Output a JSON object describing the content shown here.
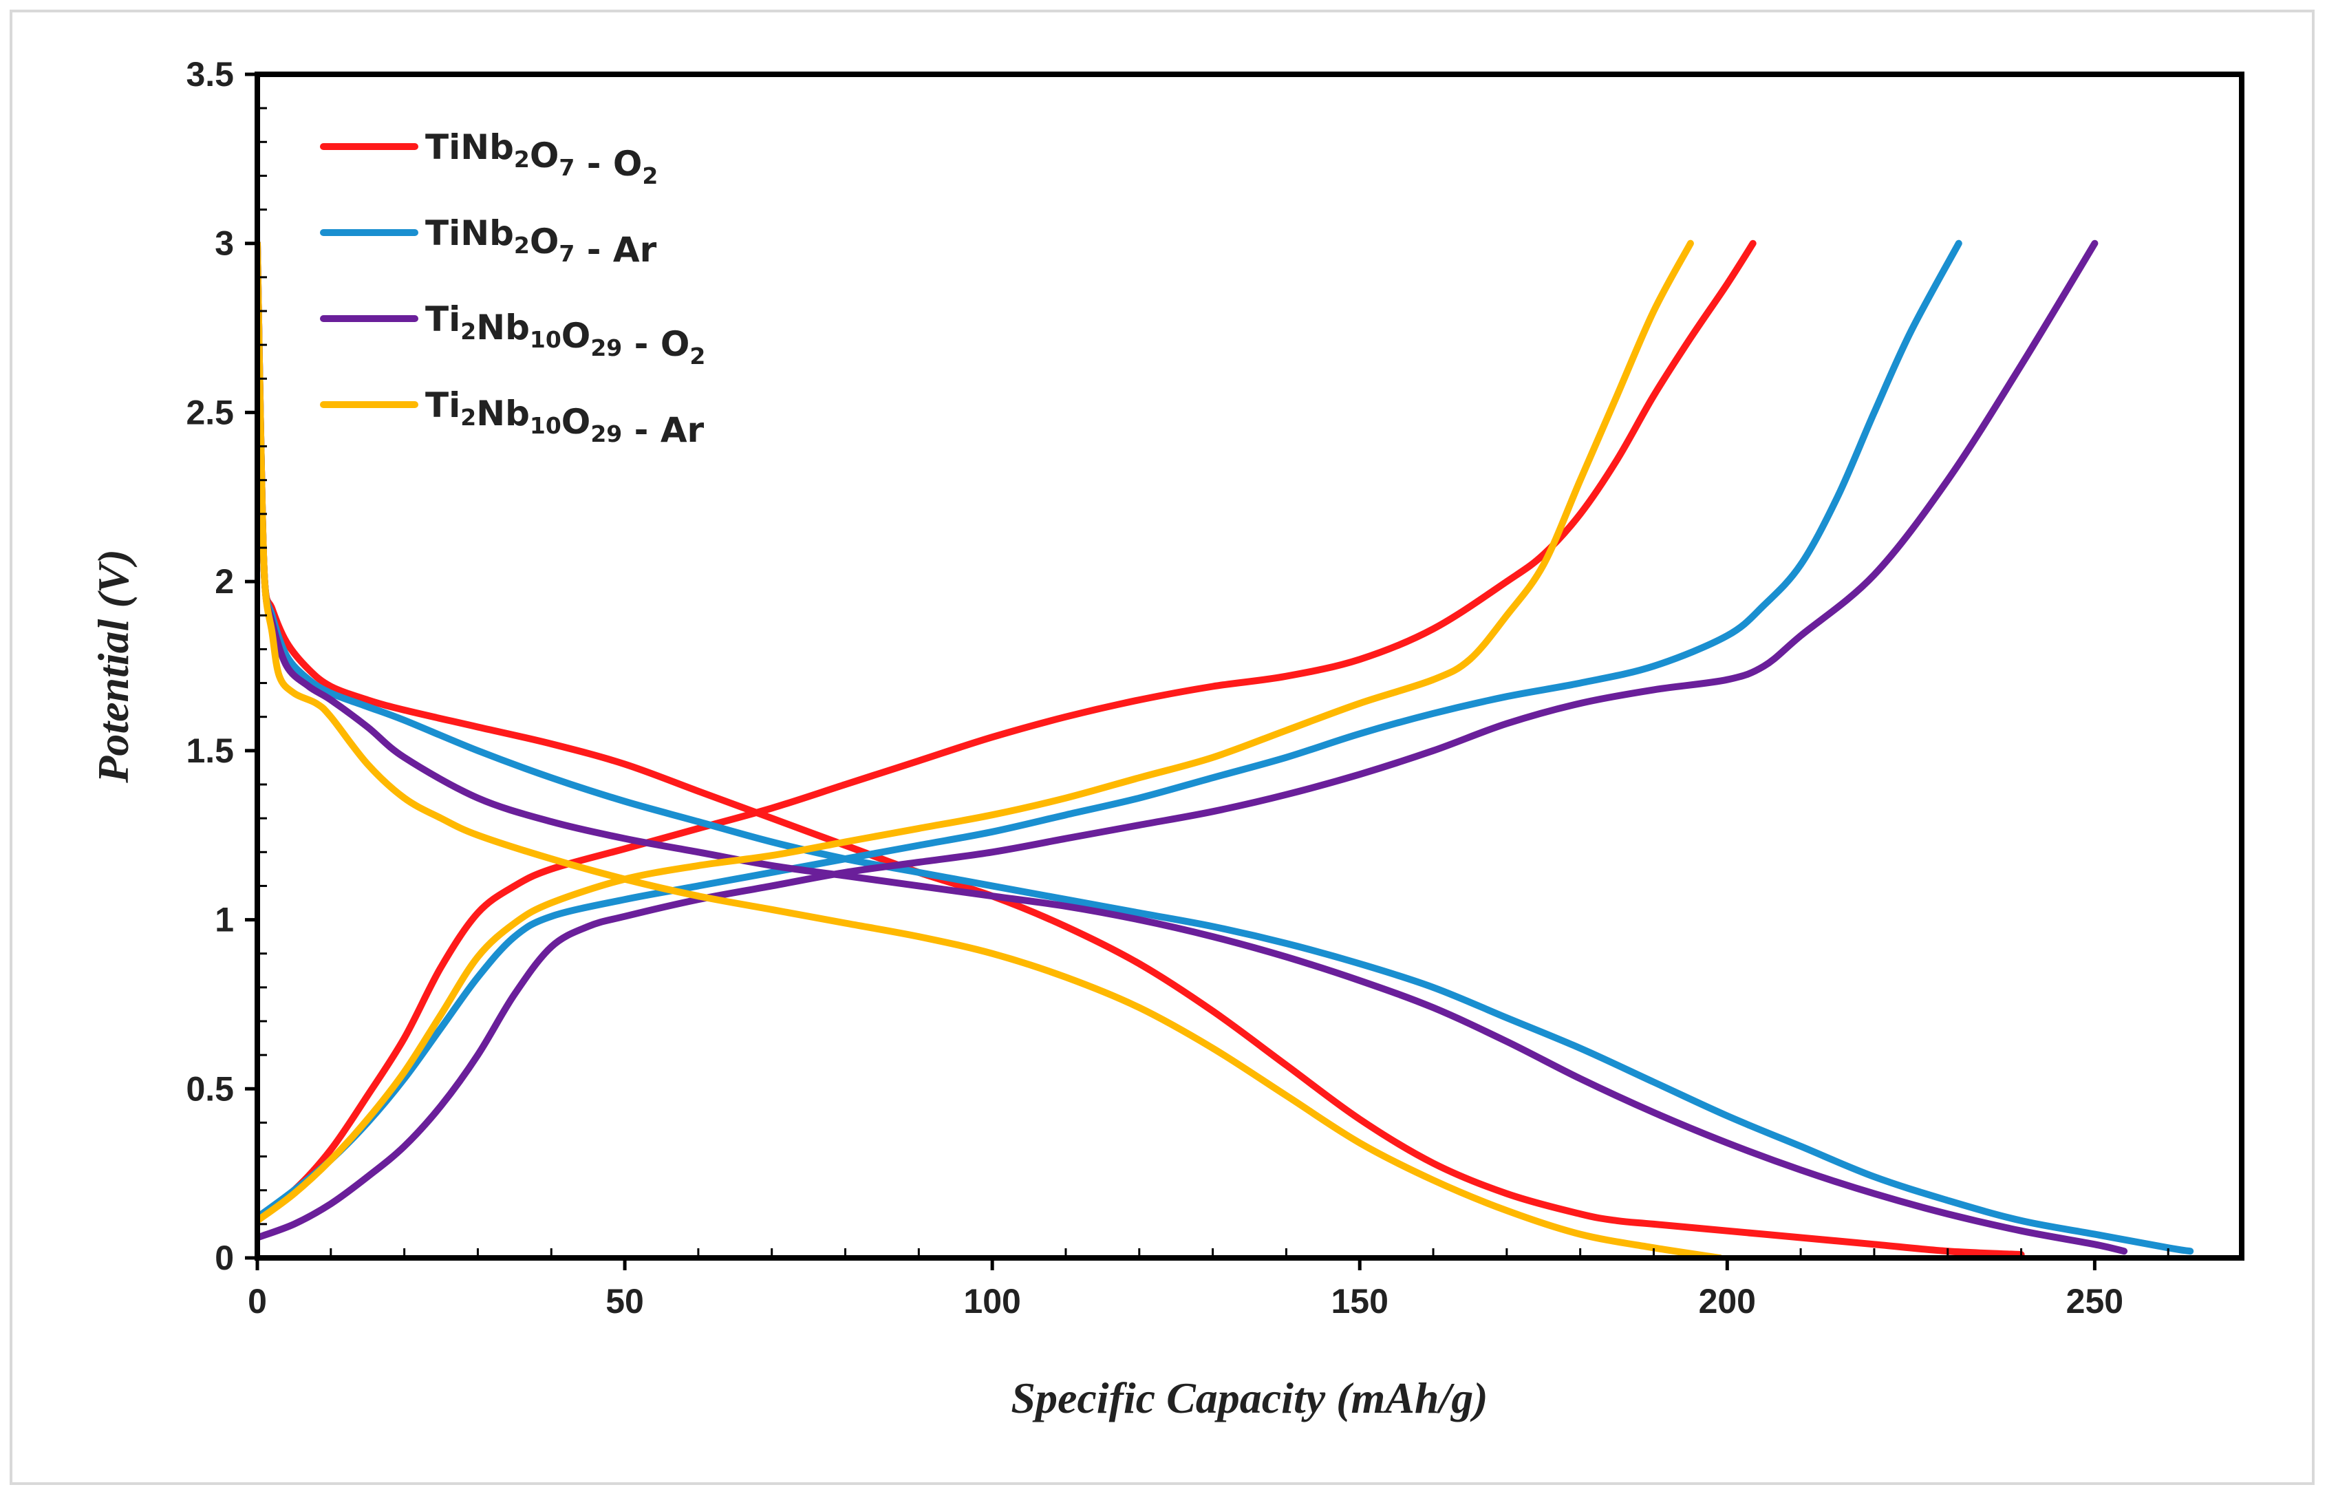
{
  "chart_data": {
    "type": "line",
    "title": "",
    "xlabel": "Specific Capacity (mAh/g)",
    "ylabel": "Potential (V)",
    "xlim": [
      0,
      270
    ],
    "ylim": [
      0,
      3.5
    ],
    "x_ticks": [
      0,
      50,
      100,
      150,
      200,
      250
    ],
    "y_ticks": [
      0,
      0.5,
      1,
      1.5,
      2,
      2.5,
      3,
      3.5
    ],
    "x_tick_labels": [
      "0",
      "50",
      "100",
      "150",
      "200",
      "250"
    ],
    "y_tick_labels": [
      "0",
      "0.5",
      "1",
      "1.5",
      "2",
      "2.5",
      "3",
      "3.5"
    ],
    "grid": false,
    "legend_position": "top-left",
    "series": [
      {
        "name": "TiNb2O7 - O2",
        "label_parts": [
          [
            "TiNb",
            ""
          ],
          [
            "2",
            "sub"
          ],
          [
            "O",
            ""
          ],
          [
            "7",
            "sub"
          ],
          [
            " - O",
            ""
          ],
          [
            "2",
            "sub"
          ]
        ],
        "color": "#ff1a1a",
        "discharge": {
          "x": [
            0,
            0.5,
            1,
            2,
            4,
            7,
            10,
            15,
            20,
            30,
            40,
            50,
            60,
            70,
            80,
            90,
            100,
            110,
            120,
            130,
            140,
            150,
            160,
            170,
            180,
            185,
            190,
            200,
            210,
            220,
            230,
            240
          ],
          "y": [
            3.0,
            2.4,
            2.0,
            1.92,
            1.82,
            1.74,
            1.69,
            1.65,
            1.62,
            1.57,
            1.52,
            1.46,
            1.38,
            1.3,
            1.22,
            1.14,
            1.07,
            0.98,
            0.87,
            0.73,
            0.57,
            0.41,
            0.28,
            0.19,
            0.13,
            0.11,
            0.1,
            0.08,
            0.06,
            0.04,
            0.02,
            0.01
          ]
        },
        "charge": {
          "x": [
            0,
            5,
            10,
            15,
            20,
            25,
            30,
            35,
            40,
            50,
            60,
            70,
            80,
            90,
            100,
            110,
            120,
            130,
            140,
            150,
            160,
            170,
            175,
            180,
            185,
            190,
            195,
            200,
            203.5
          ],
          "y": [
            0.12,
            0.2,
            0.32,
            0.48,
            0.65,
            0.86,
            1.02,
            1.1,
            1.15,
            1.21,
            1.27,
            1.33,
            1.4,
            1.47,
            1.54,
            1.6,
            1.65,
            1.69,
            1.72,
            1.77,
            1.86,
            2.0,
            2.08,
            2.2,
            2.36,
            2.55,
            2.72,
            2.88,
            3.0
          ]
        }
      },
      {
        "name": "TiNb2O7 - Ar",
        "label_parts": [
          [
            "TiNb",
            ""
          ],
          [
            "2",
            "sub"
          ],
          [
            "O",
            ""
          ],
          [
            "7",
            "sub"
          ],
          [
            " - Ar",
            ""
          ]
        ],
        "color": "#1a8fd0",
        "discharge": {
          "x": [
            0,
            0.5,
            1,
            2,
            4,
            7,
            10,
            15,
            20,
            30,
            40,
            50,
            60,
            70,
            80,
            90,
            100,
            110,
            120,
            130,
            140,
            150,
            160,
            170,
            180,
            190,
            200,
            210,
            220,
            230,
            240,
            250,
            260,
            263
          ],
          "y": [
            3.0,
            2.4,
            2.0,
            1.9,
            1.78,
            1.71,
            1.67,
            1.63,
            1.59,
            1.5,
            1.42,
            1.35,
            1.29,
            1.23,
            1.18,
            1.14,
            1.1,
            1.06,
            1.02,
            0.98,
            0.93,
            0.87,
            0.8,
            0.71,
            0.62,
            0.52,
            0.42,
            0.33,
            0.24,
            0.17,
            0.11,
            0.07,
            0.03,
            0.02
          ]
        },
        "charge": {
          "x": [
            0,
            5,
            10,
            15,
            20,
            25,
            30,
            35,
            40,
            50,
            60,
            70,
            80,
            90,
            100,
            110,
            120,
            130,
            140,
            150,
            160,
            170,
            180,
            190,
            200,
            205,
            210,
            215,
            220,
            225,
            231.5
          ],
          "y": [
            0.12,
            0.2,
            0.29,
            0.4,
            0.53,
            0.68,
            0.83,
            0.95,
            1.01,
            1.06,
            1.1,
            1.14,
            1.18,
            1.22,
            1.26,
            1.31,
            1.36,
            1.42,
            1.48,
            1.55,
            1.61,
            1.66,
            1.7,
            1.75,
            1.84,
            1.93,
            2.05,
            2.25,
            2.5,
            2.74,
            3.0
          ]
        }
      },
      {
        "name": "Ti2Nb10O29 - O2",
        "label_parts": [
          [
            "Ti",
            ""
          ],
          [
            "2",
            "sub"
          ],
          [
            "Nb",
            ""
          ],
          [
            "10",
            "sub"
          ],
          [
            "O",
            ""
          ],
          [
            "29",
            "sub"
          ],
          [
            " - O",
            ""
          ],
          [
            "2",
            "sub"
          ]
        ],
        "color": "#6a1f9a",
        "discharge": {
          "x": [
            0,
            0.5,
            1,
            2,
            4,
            7,
            10,
            15,
            20,
            30,
            40,
            50,
            60,
            70,
            80,
            90,
            100,
            110,
            120,
            130,
            140,
            150,
            160,
            170,
            180,
            190,
            200,
            210,
            220,
            230,
            240,
            250,
            254
          ],
          "y": [
            3.0,
            2.4,
            2.0,
            1.88,
            1.75,
            1.69,
            1.65,
            1.57,
            1.48,
            1.36,
            1.29,
            1.24,
            1.2,
            1.16,
            1.13,
            1.1,
            1.07,
            1.04,
            1.0,
            0.95,
            0.89,
            0.82,
            0.74,
            0.64,
            0.53,
            0.43,
            0.34,
            0.26,
            0.19,
            0.13,
            0.08,
            0.04,
            0.02
          ]
        },
        "charge": {
          "x": [
            0,
            5,
            10,
            15,
            20,
            25,
            30,
            35,
            40,
            45,
            50,
            60,
            70,
            80,
            90,
            100,
            110,
            120,
            130,
            140,
            150,
            160,
            170,
            180,
            190,
            200,
            205,
            210,
            220,
            230,
            240,
            250
          ],
          "y": [
            0.06,
            0.1,
            0.16,
            0.24,
            0.33,
            0.45,
            0.6,
            0.78,
            0.92,
            0.98,
            1.01,
            1.06,
            1.1,
            1.14,
            1.17,
            1.2,
            1.24,
            1.28,
            1.32,
            1.37,
            1.43,
            1.5,
            1.58,
            1.64,
            1.68,
            1.71,
            1.75,
            1.84,
            2.02,
            2.3,
            2.64,
            3.0
          ]
        }
      },
      {
        "name": "Ti2Nb10O29 - Ar",
        "label_parts": [
          [
            "Ti",
            ""
          ],
          [
            "2",
            "sub"
          ],
          [
            "Nb",
            ""
          ],
          [
            "10",
            "sub"
          ],
          [
            "O",
            ""
          ],
          [
            "29",
            "sub"
          ],
          [
            " - Ar",
            ""
          ]
        ],
        "color": "#ffb800",
        "discharge": {
          "x": [
            0,
            0.5,
            1,
            2,
            3,
            5,
            8,
            10,
            15,
            20,
            25,
            30,
            40,
            50,
            60,
            70,
            80,
            90,
            100,
            110,
            120,
            130,
            140,
            150,
            160,
            170,
            180,
            190,
            199
          ],
          "y": [
            3.0,
            2.4,
            2.0,
            1.85,
            1.72,
            1.67,
            1.64,
            1.6,
            1.46,
            1.36,
            1.3,
            1.25,
            1.18,
            1.12,
            1.07,
            1.03,
            0.99,
            0.95,
            0.9,
            0.83,
            0.74,
            0.62,
            0.48,
            0.34,
            0.23,
            0.14,
            0.07,
            0.03,
            0.0
          ]
        },
        "charge": {
          "x": [
            0,
            5,
            10,
            15,
            20,
            25,
            30,
            35,
            40,
            50,
            60,
            70,
            80,
            90,
            100,
            110,
            120,
            130,
            140,
            150,
            160,
            165,
            170,
            175,
            180,
            185,
            190,
            195
          ],
          "y": [
            0.11,
            0.19,
            0.29,
            0.41,
            0.55,
            0.72,
            0.89,
            0.99,
            1.05,
            1.12,
            1.16,
            1.19,
            1.23,
            1.27,
            1.31,
            1.36,
            1.42,
            1.48,
            1.56,
            1.64,
            1.71,
            1.77,
            1.9,
            2.05,
            2.3,
            2.55,
            2.8,
            3.0
          ]
        }
      }
    ]
  }
}
